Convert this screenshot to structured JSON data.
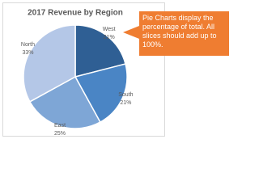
{
  "chart_data": {
    "type": "pie",
    "title": "2017 Revenue by Region",
    "categories": [
      "West",
      "South",
      "East",
      "North"
    ],
    "values": [
      21,
      21,
      25,
      33
    ],
    "value_labels": [
      "21%",
      "21%",
      "25%",
      "33%"
    ],
    "colors": [
      "#2f5f94",
      "#4a85c5",
      "#7ea6d6",
      "#b4c7e7"
    ],
    "annotation": "Pie Charts display the percentage of total. All slices should add up to 100%."
  }
}
